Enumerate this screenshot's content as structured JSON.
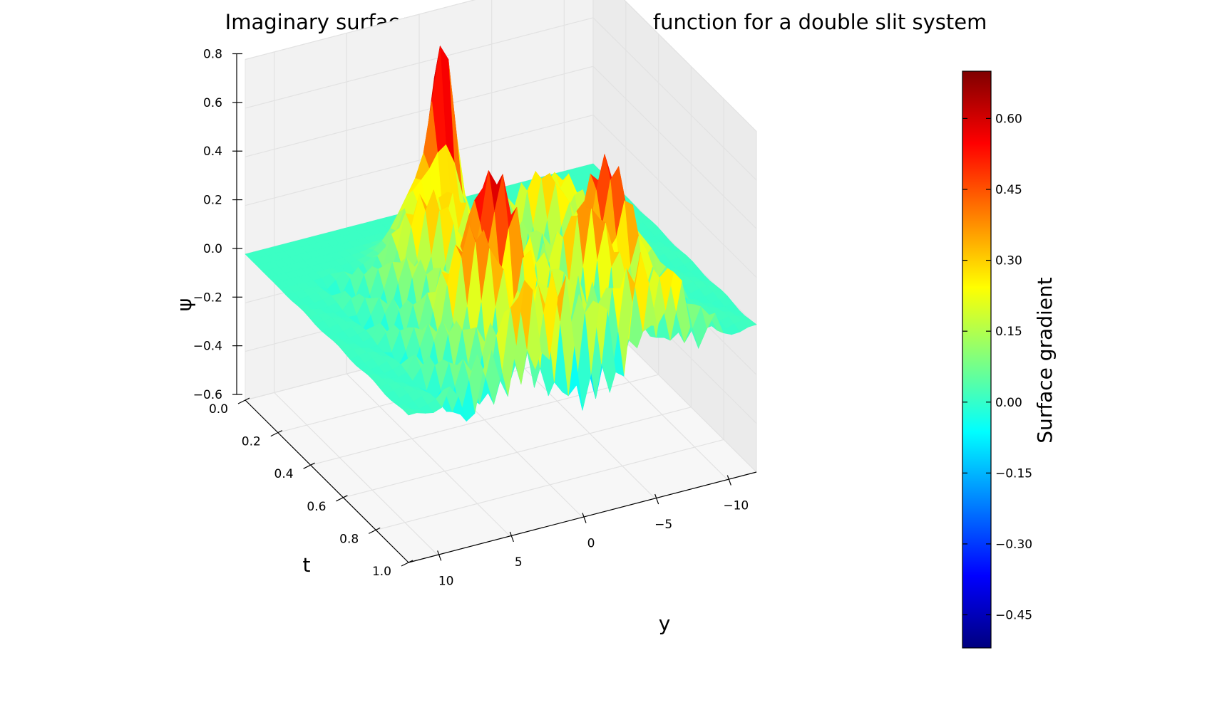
{
  "title": "Imaginary surface over time of the wave function for a double slit system",
  "chart_data": {
    "type": "surface",
    "title": "Imaginary surface over time of the wave function for a double slit system",
    "xlabel": "t",
    "ylabel": "y",
    "zlabel": "ψ",
    "t_range": [
      0.0,
      1.0
    ],
    "y_range": [
      -12,
      12
    ],
    "z_range": [
      -0.6,
      0.8
    ],
    "t_ticks": [
      "0.0",
      "0.2",
      "0.4",
      "0.6",
      "0.8",
      "1.0"
    ],
    "y_ticks": [
      "10",
      "5",
      "0",
      "−5",
      "−10"
    ],
    "z_ticks": [
      "0.8",
      "0.6",
      "0.4",
      "0.2",
      "0.0",
      "−0.2",
      "−0.4",
      "−0.6"
    ],
    "colormap": "jet",
    "peak_value": 0.7,
    "min_value": -0.5,
    "grid": true,
    "colorbar": {
      "label": "Surface gradient",
      "range": [
        -0.52,
        0.7
      ],
      "ticks": [
        "0.60",
        "0.45",
        "0.30",
        "0.15",
        "0.00",
        "−0.15",
        "−0.30",
        "−0.45"
      ]
    }
  }
}
